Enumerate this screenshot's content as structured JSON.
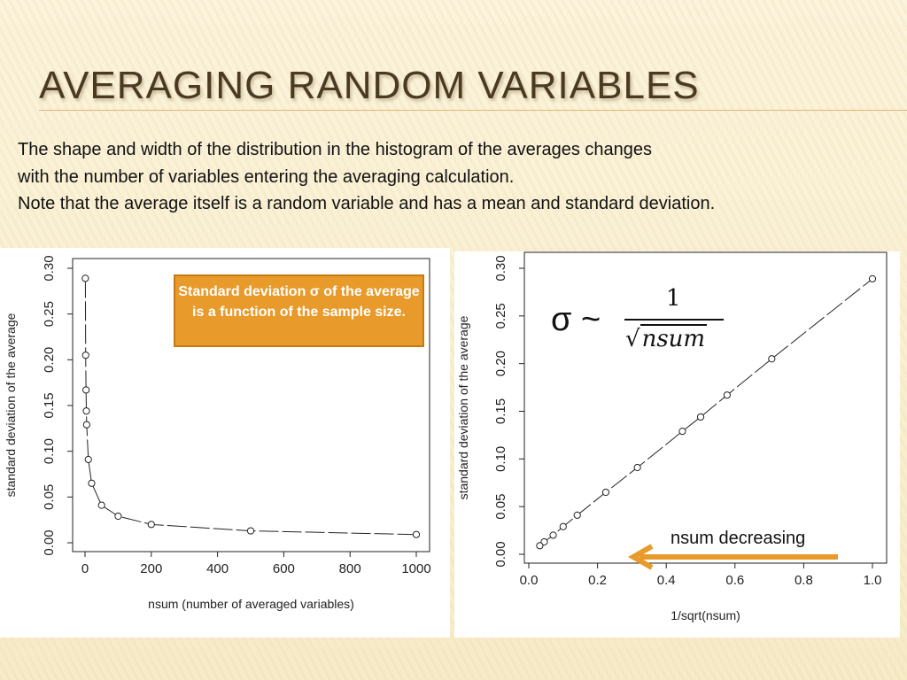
{
  "slide": {
    "title": "AVERAGING RANDOM VARIABLES",
    "body_lines": [
      "The shape and width of the distribution in the histogram of the averages changes",
      "with the number of variables entering the averaging calculation.",
      "Note that the average itself is a random variable and has a mean and standard deviation."
    ],
    "callout": "Standard deviation σ of the average is a function of the sample size.",
    "formula": {
      "lhs": "σ ~",
      "numerator": "1",
      "radical": "√",
      "denominator_var": "nsum"
    },
    "arrow_label": "nsum decreasing",
    "colors": {
      "accent": "#e89a2a",
      "title": "#4a3a22",
      "rule": "#d9b978",
      "arrow": "#e89a2a"
    }
  },
  "chart_data": [
    {
      "type": "scatter",
      "title": "",
      "xlabel": "nsum (number of averaged variables)",
      "ylabel": "standard deviation of the average",
      "xlim": [
        0,
        1000
      ],
      "ylim": [
        0,
        0.3
      ],
      "x_ticks": [
        "0",
        "200",
        "400",
        "600",
        "800",
        "1000"
      ],
      "y_ticks": [
        "0.00",
        "0.05",
        "0.10",
        "0.15",
        "0.20",
        "0.25",
        "0.30"
      ],
      "line": "dashed",
      "grid": false,
      "x": [
        1,
        2,
        3,
        4,
        5,
        10,
        20,
        50,
        100,
        200,
        500,
        1000
      ],
      "y": [
        0.289,
        0.205,
        0.167,
        0.144,
        0.129,
        0.091,
        0.065,
        0.041,
        0.029,
        0.02,
        0.013,
        0.009
      ]
    },
    {
      "type": "scatter",
      "title": "",
      "xlabel": "1/sqrt(nsum)",
      "ylabel": "standard deviation of the average",
      "xlim": [
        0,
        1
      ],
      "ylim": [
        0,
        0.3
      ],
      "x_ticks": [
        "0.0",
        "0.2",
        "0.4",
        "0.6",
        "0.8",
        "1.0"
      ],
      "y_ticks": [
        "0.00",
        "0.05",
        "0.10",
        "0.15",
        "0.20",
        "0.25",
        "0.30"
      ],
      "line": "dashed",
      "grid": false,
      "x": [
        1.0,
        0.707,
        0.577,
        0.5,
        0.447,
        0.316,
        0.224,
        0.141,
        0.1,
        0.071,
        0.045,
        0.032
      ],
      "y": [
        0.289,
        0.205,
        0.167,
        0.144,
        0.129,
        0.091,
        0.065,
        0.041,
        0.029,
        0.02,
        0.013,
        0.009
      ]
    }
  ]
}
